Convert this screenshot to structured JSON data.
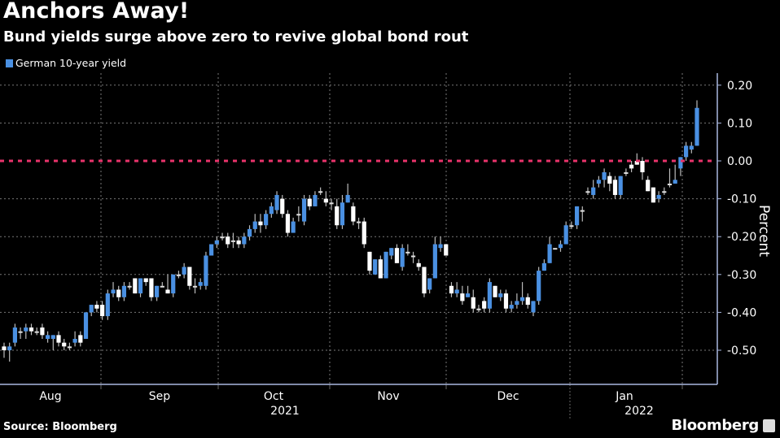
{
  "chart_data": {
    "type": "candlestick",
    "title": "Anchors Away!",
    "subtitle": "Bund yields surge above zero to revive global bond rout",
    "legend": [
      {
        "label": "German 10-year yield",
        "color": "#4a90e2"
      }
    ],
    "legend_placement": "top-left",
    "ylabel": "Percent",
    "ylim": [
      -0.58,
      0.23
    ],
    "yticks": [
      "0.20",
      "0.10",
      "0.00",
      "-0.10",
      "-0.20",
      "-0.30",
      "-0.40",
      "-0.50"
    ],
    "ytick_values": [
      0.2,
      0.1,
      0.0,
      -0.1,
      -0.2,
      -0.3,
      -0.4,
      -0.5
    ],
    "reference_line": {
      "value": 0.0,
      "color": "#e8336b",
      "style": "dotted"
    },
    "xticks": [
      "Aug",
      "Sep",
      "Oct",
      "Nov",
      "Dec",
      "Jan"
    ],
    "year_labels": [
      "2021",
      "2022"
    ],
    "grid": true,
    "up_color": "#4a90e2",
    "down_color": "#ffffff",
    "ohlc_fields": [
      "open",
      "high",
      "low",
      "close"
    ],
    "ohlc": [
      [
        -0.49,
        -0.48,
        -0.52,
        -0.5
      ],
      [
        -0.5,
        -0.48,
        -0.53,
        -0.49
      ],
      [
        -0.48,
        -0.43,
        -0.49,
        -0.44
      ],
      [
        -0.45,
        -0.44,
        -0.47,
        -0.45
      ],
      [
        -0.45,
        -0.43,
        -0.47,
        -0.44
      ],
      [
        -0.44,
        -0.43,
        -0.46,
        -0.45
      ],
      [
        -0.45,
        -0.44,
        -0.46,
        -0.45
      ],
      [
        -0.44,
        -0.43,
        -0.47,
        -0.46
      ],
      [
        -0.47,
        -0.45,
        -0.48,
        -0.46
      ],
      [
        -0.47,
        -0.46,
        -0.5,
        -0.46
      ],
      [
        -0.46,
        -0.45,
        -0.49,
        -0.48
      ],
      [
        -0.48,
        -0.47,
        -0.5,
        -0.49
      ],
      [
        -0.49,
        -0.48,
        -0.5,
        -0.49
      ],
      [
        -0.48,
        -0.45,
        -0.49,
        -0.47
      ],
      [
        -0.46,
        -0.45,
        -0.49,
        -0.48
      ],
      [
        -0.47,
        -0.4,
        -0.47,
        -0.4
      ],
      [
        -0.4,
        -0.38,
        -0.41,
        -0.38
      ],
      [
        -0.38,
        -0.37,
        -0.4,
        -0.39
      ],
      [
        -0.38,
        -0.37,
        -0.42,
        -0.41
      ],
      [
        -0.41,
        -0.34,
        -0.42,
        -0.35
      ],
      [
        -0.35,
        -0.32,
        -0.36,
        -0.34
      ],
      [
        -0.34,
        -0.33,
        -0.37,
        -0.36
      ],
      [
        -0.36,
        -0.32,
        -0.37,
        -0.33
      ],
      [
        -0.33,
        -0.32,
        -0.34,
        -0.33
      ],
      [
        -0.31,
        -0.31,
        -0.35,
        -0.35
      ],
      [
        -0.35,
        -0.31,
        -0.36,
        -0.31
      ],
      [
        -0.31,
        -0.31,
        -0.33,
        -0.32
      ],
      [
        -0.31,
        -0.31,
        -0.37,
        -0.36
      ],
      [
        -0.36,
        -0.33,
        -0.37,
        -0.33
      ],
      [
        -0.33,
        -0.32,
        -0.33,
        -0.33
      ],
      [
        -0.34,
        -0.3,
        -0.35,
        -0.35
      ],
      [
        -0.35,
        -0.3,
        -0.36,
        -0.3
      ],
      [
        -0.3,
        -0.29,
        -0.31,
        -0.3
      ],
      [
        -0.3,
        -0.27,
        -0.31,
        -0.28
      ],
      [
        -0.28,
        -0.28,
        -0.34,
        -0.33
      ],
      [
        -0.33,
        -0.31,
        -0.35,
        -0.33
      ],
      [
        -0.33,
        -0.31,
        -0.34,
        -0.32
      ],
      [
        -0.33,
        -0.24,
        -0.34,
        -0.25
      ],
      [
        -0.25,
        -0.22,
        -0.25,
        -0.22
      ],
      [
        -0.22,
        -0.2,
        -0.23,
        -0.21
      ],
      [
        -0.2,
        -0.19,
        -0.21,
        -0.2
      ],
      [
        -0.2,
        -0.19,
        -0.23,
        -0.22
      ],
      [
        -0.21,
        -0.19,
        -0.23,
        -0.21
      ],
      [
        -0.21,
        -0.2,
        -0.23,
        -0.22
      ],
      [
        -0.22,
        -0.19,
        -0.23,
        -0.2
      ],
      [
        -0.2,
        -0.17,
        -0.21,
        -0.18
      ],
      [
        -0.18,
        -0.14,
        -0.19,
        -0.16
      ],
      [
        -0.16,
        -0.14,
        -0.19,
        -0.17
      ],
      [
        -0.17,
        -0.13,
        -0.18,
        -0.14
      ],
      [
        -0.14,
        -0.11,
        -0.15,
        -0.12
      ],
      [
        -0.13,
        -0.08,
        -0.14,
        -0.09
      ],
      [
        -0.1,
        -0.09,
        -0.15,
        -0.14
      ],
      [
        -0.14,
        -0.13,
        -0.2,
        -0.19
      ],
      [
        -0.19,
        -0.15,
        -0.19,
        -0.16
      ],
      [
        -0.14,
        -0.12,
        -0.16,
        -0.14
      ],
      [
        -0.16,
        -0.09,
        -0.17,
        -0.1
      ],
      [
        -0.1,
        -0.09,
        -0.13,
        -0.12
      ],
      [
        -0.12,
        -0.08,
        -0.12,
        -0.09
      ],
      [
        -0.08,
        -0.07,
        -0.09,
        -0.08
      ],
      [
        -0.1,
        -0.08,
        -0.12,
        -0.11
      ],
      [
        -0.11,
        -0.1,
        -0.13,
        -0.11
      ],
      [
        -0.12,
        -0.1,
        -0.18,
        -0.17
      ],
      [
        -0.17,
        -0.09,
        -0.18,
        -0.11
      ],
      [
        -0.11,
        -0.06,
        -0.11,
        -0.09
      ],
      [
        -0.12,
        -0.11,
        -0.17,
        -0.16
      ],
      [
        -0.16,
        -0.15,
        -0.18,
        -0.16
      ],
      [
        -0.16,
        -0.15,
        -0.23,
        -0.22
      ],
      [
        -0.24,
        -0.24,
        -0.3,
        -0.29
      ],
      [
        -0.3,
        -0.26,
        -0.3,
        -0.26
      ],
      [
        -0.26,
        -0.25,
        -0.31,
        -0.31
      ],
      [
        -0.31,
        -0.24,
        -0.31,
        -0.24
      ],
      [
        -0.25,
        -0.23,
        -0.26,
        -0.23
      ],
      [
        -0.23,
        -0.22,
        -0.27,
        -0.27
      ],
      [
        -0.28,
        -0.22,
        -0.29,
        -0.23
      ],
      [
        -0.24,
        -0.22,
        -0.25,
        -0.24
      ],
      [
        -0.25,
        -0.24,
        -0.27,
        -0.25
      ],
      [
        -0.27,
        -0.26,
        -0.29,
        -0.28
      ],
      [
        -0.28,
        -0.28,
        -0.36,
        -0.35
      ],
      [
        -0.34,
        -0.31,
        -0.35,
        -0.31
      ],
      [
        -0.31,
        -0.2,
        -0.31,
        -0.22
      ],
      [
        -0.23,
        -0.2,
        -0.24,
        -0.22
      ],
      [
        -0.22,
        -0.22,
        -0.25,
        -0.25
      ],
      [
        -0.33,
        -0.32,
        -0.36,
        -0.35
      ],
      [
        -0.35,
        -0.32,
        -0.36,
        -0.34
      ],
      [
        -0.35,
        -0.33,
        -0.38,
        -0.37
      ],
      [
        -0.36,
        -0.33,
        -0.36,
        -0.35
      ],
      [
        -0.36,
        -0.34,
        -0.4,
        -0.39
      ],
      [
        -0.39,
        -0.38,
        -0.4,
        -0.39
      ],
      [
        -0.37,
        -0.36,
        -0.4,
        -0.39
      ],
      [
        -0.39,
        -0.31,
        -0.4,
        -0.32
      ],
      [
        -0.33,
        -0.33,
        -0.36,
        -0.36
      ],
      [
        -0.36,
        -0.34,
        -0.37,
        -0.35
      ],
      [
        -0.35,
        -0.34,
        -0.4,
        -0.39
      ],
      [
        -0.39,
        -0.37,
        -0.4,
        -0.38
      ],
      [
        -0.38,
        -0.35,
        -0.39,
        -0.37
      ],
      [
        -0.37,
        -0.32,
        -0.38,
        -0.36
      ],
      [
        -0.36,
        -0.35,
        -0.39,
        -0.38
      ],
      [
        -0.4,
        -0.37,
        -0.41,
        -0.37
      ],
      [
        -0.37,
        -0.28,
        -0.38,
        -0.29
      ],
      [
        -0.29,
        -0.26,
        -0.29,
        -0.27
      ],
      [
        -0.27,
        -0.2,
        -0.27,
        -0.22
      ],
      [
        -0.23,
        -0.23,
        -0.23,
        -0.23
      ],
      [
        -0.23,
        -0.21,
        -0.24,
        -0.22
      ],
      [
        -0.22,
        -0.16,
        -0.22,
        -0.17
      ],
      [
        -0.17,
        -0.16,
        -0.18,
        -0.17
      ],
      [
        -0.17,
        -0.12,
        -0.18,
        -0.12
      ],
      [
        -0.13,
        -0.12,
        -0.16,
        -0.13
      ],
      [
        -0.08,
        -0.07,
        -0.09,
        -0.08
      ],
      [
        -0.09,
        -0.05,
        -0.1,
        -0.07
      ],
      [
        -0.06,
        -0.04,
        -0.07,
        -0.05
      ],
      [
        -0.05,
        -0.02,
        -0.07,
        -0.03
      ],
      [
        -0.04,
        -0.03,
        -0.08,
        -0.06
      ],
      [
        -0.05,
        -0.04,
        -0.1,
        -0.09
      ],
      [
        -0.09,
        -0.04,
        -0.1,
        -0.04
      ],
      [
        -0.03,
        -0.02,
        -0.04,
        -0.03
      ],
      [
        -0.01,
        0.0,
        -0.03,
        -0.02
      ],
      [
        0.0,
        0.02,
        -0.01,
        -0.01
      ],
      [
        0.0,
        0.01,
        -0.05,
        -0.03
      ],
      [
        -0.05,
        -0.04,
        -0.08,
        -0.08
      ],
      [
        -0.07,
        -0.07,
        -0.11,
        -0.11
      ],
      [
        -0.1,
        -0.08,
        -0.11,
        -0.09
      ],
      [
        -0.08,
        -0.07,
        -0.09,
        -0.08
      ],
      [
        -0.06,
        -0.02,
        -0.07,
        -0.06
      ],
      [
        -0.06,
        -0.01,
        -0.06,
        -0.05
      ],
      [
        -0.02,
        0.01,
        -0.04,
        0.01
      ],
      [
        0.01,
        0.05,
        0.0,
        0.04
      ],
      [
        0.03,
        0.05,
        0.02,
        0.04
      ],
      [
        0.04,
        0.16,
        0.04,
        0.14
      ]
    ]
  },
  "footer": {
    "source": "Source: Bloomberg",
    "brand": "Bloomberg"
  }
}
